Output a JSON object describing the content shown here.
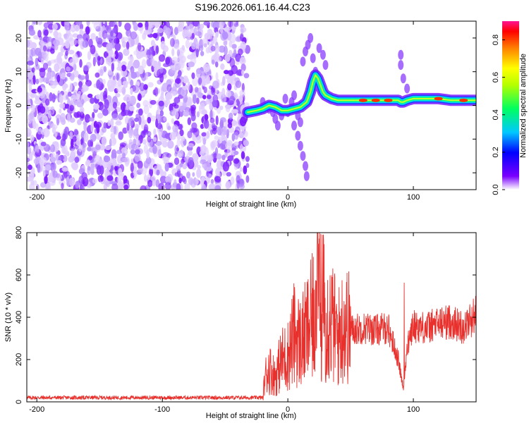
{
  "title": "S196.2026.061.16.44.C23",
  "chart_data": [
    {
      "type": "heatmap",
      "name": "spectrogram",
      "xlabel": "Height of straight line (km)",
      "ylabel": "Frequency (Hz)",
      "xlim": [
        -208,
        150
      ],
      "ylim": [
        -25,
        25
      ],
      "xticks": [
        -200,
        -100,
        0,
        100
      ],
      "yticks": [
        -20,
        -10,
        0,
        10,
        20
      ],
      "noise_region_x": [
        -208,
        -32
      ],
      "signal_ridge": {
        "x": [
          -32,
          -25,
          -20,
          -15,
          -10,
          -5,
          0,
          5,
          10,
          15,
          18,
          20,
          22,
          24,
          26,
          28,
          30,
          35,
          40,
          50,
          60,
          70,
          80,
          85,
          88,
          90,
          92,
          95,
          100,
          110,
          120,
          130,
          140,
          150
        ],
        "y": [
          -2,
          -1.5,
          -1,
          0,
          -0.5,
          -1.5,
          -1.5,
          -1,
          -0.5,
          1,
          4,
          7,
          9,
          8,
          6,
          4,
          3,
          2,
          1.5,
          1.5,
          1.5,
          1.5,
          1.5,
          1.5,
          1.5,
          1,
          1,
          1.5,
          2,
          2,
          2,
          1.5,
          1.5,
          1.5
        ]
      },
      "colorbar": {
        "label": "Normalized spectral amplitude",
        "ticks": [
          0.0,
          0.2,
          0.4,
          0.6,
          0.8
        ],
        "tick_labels": [
          "0.0",
          "0.2",
          "0.4",
          "0.6",
          "0.8"
        ],
        "range": [
          0,
          0.9
        ]
      }
    },
    {
      "type": "line",
      "name": "snr",
      "xlabel": "Height of straight line (km)",
      "ylabel": "SNR (10 * v/v)",
      "xlim": [
        -208,
        150
      ],
      "ylim": [
        0,
        800
      ],
      "xticks": [
        -200,
        -100,
        0,
        100
      ],
      "yticks": [
        0,
        200,
        400,
        600,
        800
      ],
      "color": "#e8302c",
      "series": [
        {
          "name": "SNR",
          "x": [
            -208,
            -150,
            -100,
            -50,
            -20,
            -18,
            -15,
            -10,
            -5,
            0,
            5,
            10,
            15,
            20,
            25,
            30,
            35,
            40,
            45,
            50,
            60,
            70,
            80,
            88,
            92,
            95,
            98,
            100,
            110,
            120,
            130,
            140,
            150
          ],
          "values": [
            20,
            20,
            20,
            20,
            20,
            120,
            160,
            120,
            200,
            220,
            320,
            280,
            330,
            400,
            520,
            400,
            380,
            300,
            380,
            340,
            350,
            340,
            350,
            200,
            60,
            250,
            320,
            360,
            350,
            370,
            380,
            350,
            420
          ]
        }
      ]
    }
  ]
}
